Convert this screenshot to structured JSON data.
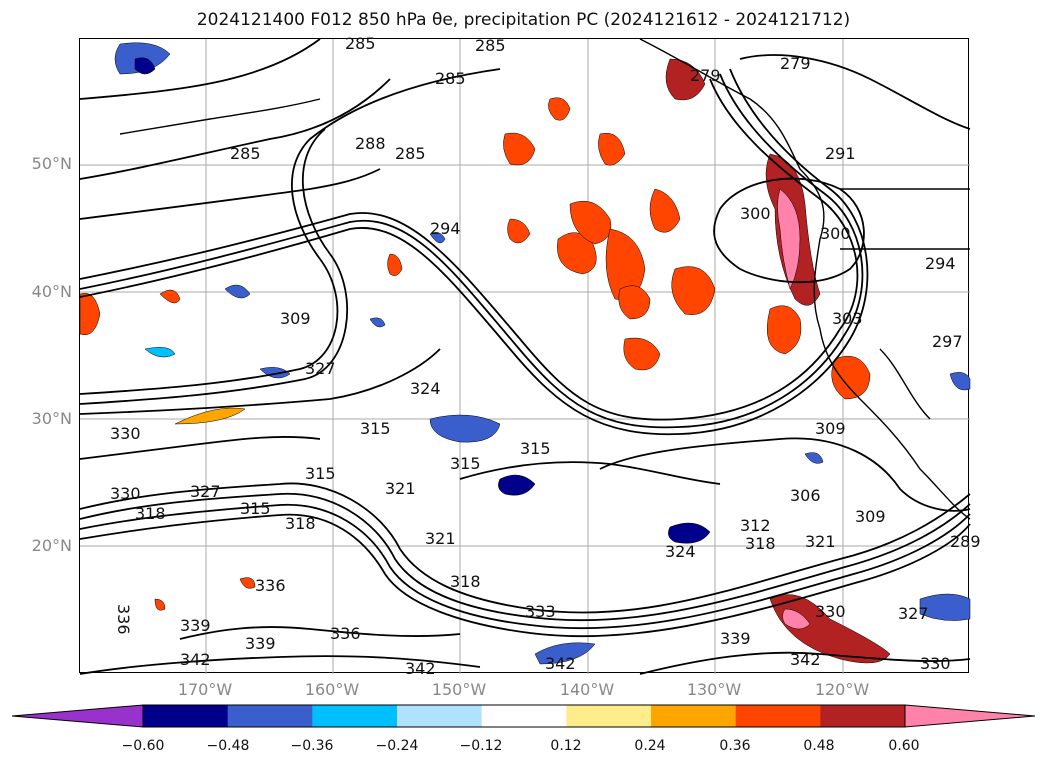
{
  "title": "2024121400 F012 850 hPa θe, precipitation PC (2024121612 - 2024121712)",
  "lat_labels": [
    "50°N",
    "40°N",
    "30°N",
    "20°N"
  ],
  "lon_labels": [
    "170°W",
    "160°W",
    "150°W",
    "140°W",
    "130°W",
    "120°W"
  ],
  "contour_labels": [
    "285",
    "285",
    "285",
    "285",
    "288",
    "285",
    "294",
    "300",
    "300",
    "291",
    "279",
    "279",
    "294",
    "297",
    "309",
    "309",
    "327",
    "330",
    "324",
    "315",
    "315",
    "315",
    "315",
    "315",
    "321",
    "321",
    "318",
    "318",
    "327",
    "330",
    "336",
    "339",
    "339",
    "342",
    "336",
    "333",
    "306",
    "312",
    "318",
    "321",
    "309",
    "318",
    "324",
    "336",
    "339",
    "342",
    "342",
    "330",
    "327",
    "330",
    "303",
    "342",
    "289"
  ],
  "colorbar": {
    "ticks": [
      "−0.60",
      "−0.48",
      "−0.36",
      "−0.24",
      "−0.12",
      "0.12",
      "0.24",
      "0.36",
      "0.48",
      "0.60"
    ],
    "colors": [
      "#9932cc",
      "#00008b",
      "#3a5fcd",
      "#00bfff",
      "#b0e2ff",
      "#ffffff",
      "#ffec8b",
      "#ffa500",
      "#ff4500",
      "#b22222",
      "#ff82ab"
    ]
  }
}
